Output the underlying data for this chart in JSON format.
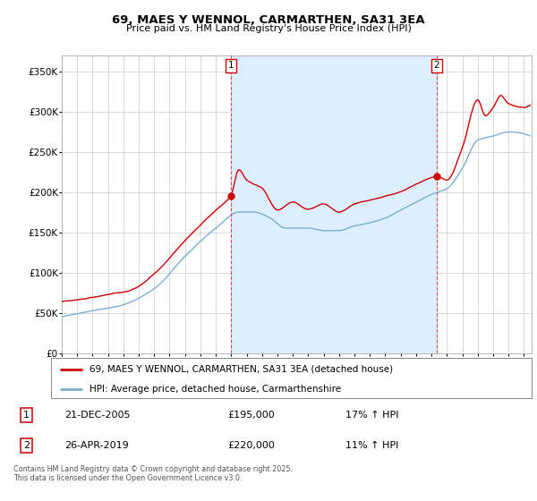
{
  "title": "69, MAES Y WENNOL, CARMARTHEN, SA31 3EA",
  "subtitle": "Price paid vs. HM Land Registry's House Price Index (HPI)",
  "background_color": "#ffffff",
  "plot_bg_color": "#ffffff",
  "grid_color": "#cccccc",
  "red_color": "#cc0000",
  "blue_color": "#7aafd4",
  "shade_color": "#ddeeff",
  "xlim_start": 1995.0,
  "xlim_end": 2025.5,
  "ylim_min": 0,
  "ylim_max": 370000,
  "yticks": [
    0,
    50000,
    100000,
    150000,
    200000,
    250000,
    300000,
    350000
  ],
  "ytick_labels": [
    "£0",
    "£50K",
    "£100K",
    "£150K",
    "£200K",
    "£250K",
    "£300K",
    "£350K"
  ],
  "marker1_x": 2005.97,
  "marker1_y": 195000,
  "marker2_x": 2019.32,
  "marker2_y": 220000,
  "legend_line1": "69, MAES Y WENNOL, CARMARTHEN, SA31 3EA (detached house)",
  "legend_line2": "HPI: Average price, detached house, Carmarthenshire",
  "annotation1_num": "1",
  "annotation1_date": "21-DEC-2005",
  "annotation1_price": "£195,000",
  "annotation1_hpi": "17% ↑ HPI",
  "annotation2_num": "2",
  "annotation2_date": "26-APR-2019",
  "annotation2_price": "£220,000",
  "annotation2_hpi": "11% ↑ HPI",
  "footer": "Contains HM Land Registry data © Crown copyright and database right 2025.\nThis data is licensed under the Open Government Licence v3.0."
}
